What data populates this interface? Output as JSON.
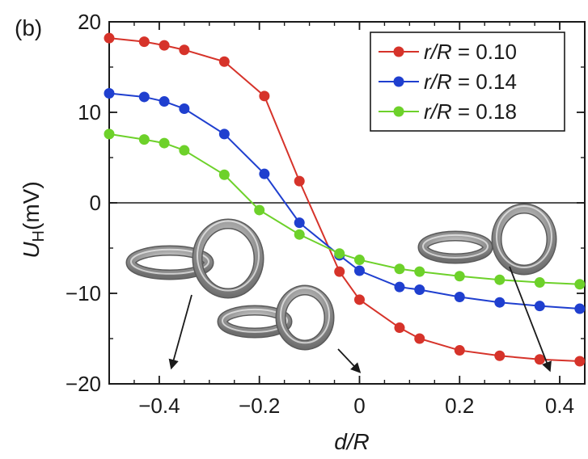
{
  "panel_label": "(b)",
  "colors": {
    "red": "#d6332a",
    "blue": "#1f3fcf",
    "green": "#6dd12a",
    "axis": "#1a1a1a",
    "ring": "#8f8f8f"
  },
  "chart_data": {
    "type": "line",
    "xlabel": "d/R",
    "ylabel_main": "U",
    "ylabel_sub": "H",
    "ylabel_unit": "(mV)",
    "xlim": [
      -0.5,
      0.45
    ],
    "ylim": [
      -20,
      20
    ],
    "xticks": [
      -0.4,
      -0.2,
      0,
      0.2,
      0.4
    ],
    "xtick_labels": [
      "−0.4",
      "−0.2",
      "0",
      "0.2",
      "0.4"
    ],
    "yticks": [
      -20,
      -10,
      0,
      10,
      20
    ],
    "ytick_labels": [
      "−20",
      "−10",
      "0",
      "10",
      "20"
    ],
    "legend_position": "top-right",
    "series": [
      {
        "name": "r/R = 0.10",
        "legend_italic": "r/R",
        "legend_value": " = 0.10",
        "color": "#d6332a",
        "x": [
          -0.5,
          -0.43,
          -0.39,
          -0.35,
          -0.27,
          -0.19,
          -0.12,
          -0.04,
          0.0,
          0.08,
          0.12,
          0.2,
          0.28,
          0.36,
          0.44
        ],
        "y": [
          18.2,
          17.8,
          17.4,
          16.9,
          15.6,
          11.8,
          2.4,
          -7.6,
          -10.7,
          -13.8,
          -15.0,
          -16.3,
          -16.9,
          -17.3,
          -17.5
        ]
      },
      {
        "name": "r/R = 0.14",
        "legend_italic": "r/R",
        "legend_value": " = 0.14",
        "color": "#1f3fcf",
        "x": [
          -0.5,
          -0.43,
          -0.39,
          -0.35,
          -0.27,
          -0.19,
          -0.12,
          -0.04,
          0.0,
          0.08,
          0.12,
          0.2,
          0.28,
          0.36,
          0.44
        ],
        "y": [
          12.1,
          11.7,
          11.2,
          10.4,
          7.6,
          3.2,
          -2.2,
          -5.8,
          -7.5,
          -9.3,
          -9.6,
          -10.4,
          -11.0,
          -11.4,
          -11.7
        ]
      },
      {
        "name": "r/R = 0.18",
        "legend_italic": "r/R",
        "legend_value": " = 0.18",
        "color": "#6dd12a",
        "x": [
          -0.5,
          -0.43,
          -0.39,
          -0.35,
          -0.27,
          -0.2,
          -0.12,
          -0.04,
          0.0,
          0.08,
          0.12,
          0.2,
          0.28,
          0.36,
          0.44
        ],
        "y": [
          7.6,
          7.0,
          6.6,
          5.8,
          3.1,
          -0.8,
          -3.5,
          -5.6,
          -6.3,
          -7.3,
          -7.6,
          -8.1,
          -8.5,
          -8.8,
          -9.0
        ]
      }
    ],
    "insets": [
      {
        "name": "linked-rings-left",
        "arrow_to_x": -0.4
      },
      {
        "name": "linked-rings-center",
        "arrow_to_x": 0.0
      },
      {
        "name": "linked-rings-right",
        "arrow_to_x": 0.38
      }
    ]
  }
}
